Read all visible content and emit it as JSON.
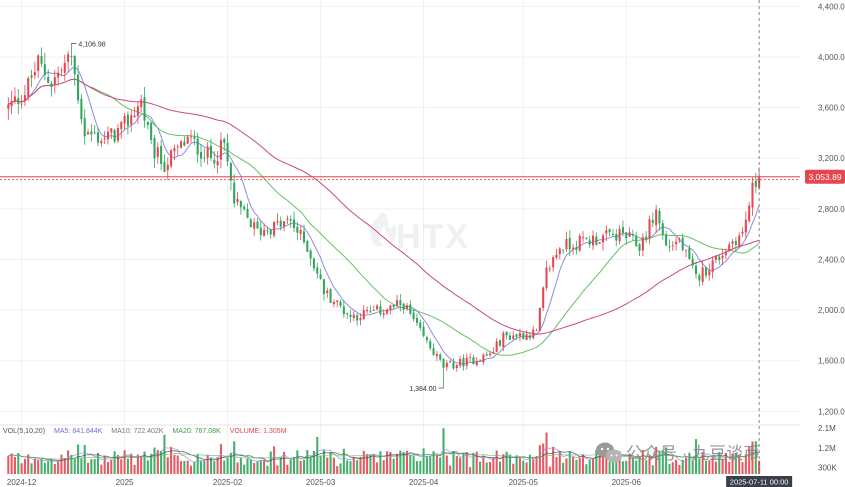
{
  "watermark": "HTX",
  "overlay_watermark": "公众号 · 九豆谈币",
  "chart_data": {
    "type": "candlestick",
    "timeframe": "daily",
    "price_axis": {
      "ylim": [
        1100,
        4450
      ],
      "ticks": [
        1200,
        1600,
        2000,
        2400,
        2800,
        3200,
        3600,
        4000,
        4400
      ]
    },
    "price_tick_labels": [
      "1,200.00",
      "1,600.00",
      "2,000.00",
      "2,400.00",
      "2,800.00",
      "3,200.00",
      "3,600.00",
      "4,000.00",
      "4,400.00"
    ],
    "volume_axis": {
      "ylim": [
        0,
        2200000
      ],
      "ticks": [
        300000,
        1200000,
        2100000
      ]
    },
    "volume_tick_labels": [
      "300K",
      "1.2M",
      "2.1M"
    ],
    "x_tick_labels": [
      "2024-12",
      "2025",
      "2025-02",
      "2025-03",
      "2025-04",
      "2025-05",
      "2025-06"
    ],
    "crosshair_date": "2025-07-11 00:00",
    "current_price": 3053.89,
    "current_price_label": "3,053.89",
    "annotations": {
      "high": "4,106.98",
      "low": "1,384.00"
    },
    "volume_legend": {
      "title": "VOL(5,10,20)",
      "ma5": "MA5: 841.844K",
      "ma10": "MA10: 722.402K",
      "ma20": "MA20: 767.08K",
      "volume": "VOLUME: 1.305M"
    },
    "colors": {
      "up": "#e5464f",
      "down": "#2ea65b",
      "ma_fast": "#8b8fe0",
      "ma_mid": "#6abf69",
      "ma_slow": "#c9488c",
      "price_line": "#e5464f",
      "crosshair": "#666666",
      "label_bg": "#3a3f4a"
    },
    "anchors": [
      [
        "2024-11-27",
        3600
      ],
      [
        "2024-12-02",
        3720
      ],
      [
        "2024-12-06",
        3950
      ],
      [
        "2024-12-10",
        3800
      ],
      [
        "2024-12-16",
        4000
      ],
      [
        "2024-12-20",
        3400
      ],
      [
        "2024-12-26",
        3350
      ],
      [
        "2024-12-31",
        3420
      ],
      [
        "2025-01-06",
        3650
      ],
      [
        "2025-01-09",
        3280
      ],
      [
        "2025-01-13",
        3150
      ],
      [
        "2025-01-20",
        3350
      ],
      [
        "2025-01-27",
        3200
      ],
      [
        "2025-01-31",
        3300
      ],
      [
        "2025-02-03",
        2850
      ],
      [
        "2025-02-10",
        2620
      ],
      [
        "2025-02-20",
        2700
      ],
      [
        "2025-02-25",
        2500
      ],
      [
        "2025-03-02",
        2150
      ],
      [
        "2025-03-10",
        1950
      ],
      [
        "2025-03-20",
        2000
      ],
      [
        "2025-03-26",
        2050
      ],
      [
        "2025-03-31",
        1820
      ],
      [
        "2025-04-07",
        1550
      ],
      [
        "2025-04-15",
        1600
      ],
      [
        "2025-04-21",
        1650
      ],
      [
        "2025-04-25",
        1790
      ],
      [
        "2025-05-05",
        1820
      ],
      [
        "2025-05-08",
        2300
      ],
      [
        "2025-05-12",
        2500
      ],
      [
        "2025-05-20",
        2550
      ],
      [
        "2025-05-31",
        2600
      ],
      [
        "2025-06-05",
        2500
      ],
      [
        "2025-06-10",
        2780
      ],
      [
        "2025-06-13",
        2500
      ],
      [
        "2025-06-17",
        2550
      ],
      [
        "2025-06-22",
        2250
      ],
      [
        "2025-06-30",
        2450
      ],
      [
        "2025-07-03",
        2550
      ],
      [
        "2025-07-06",
        2600
      ],
      [
        "2025-07-09",
        2950
      ],
      [
        "2025-07-11",
        3053.89
      ]
    ],
    "extremes": [
      [
        "2024-12-16",
        4106.98
      ],
      [
        "2025-04-07",
        1384.0
      ]
    ],
    "volume_spikes": [
      [
        "2025-01-13",
        1800000
      ],
      [
        "2025-02-03",
        1500000
      ],
      [
        "2025-02-28",
        1700000
      ],
      [
        "2025-04-07",
        2100000
      ],
      [
        "2025-05-08",
        1900000
      ],
      [
        "2025-06-22",
        1600000
      ],
      [
        "2025-07-10",
        1500000
      ]
    ]
  }
}
